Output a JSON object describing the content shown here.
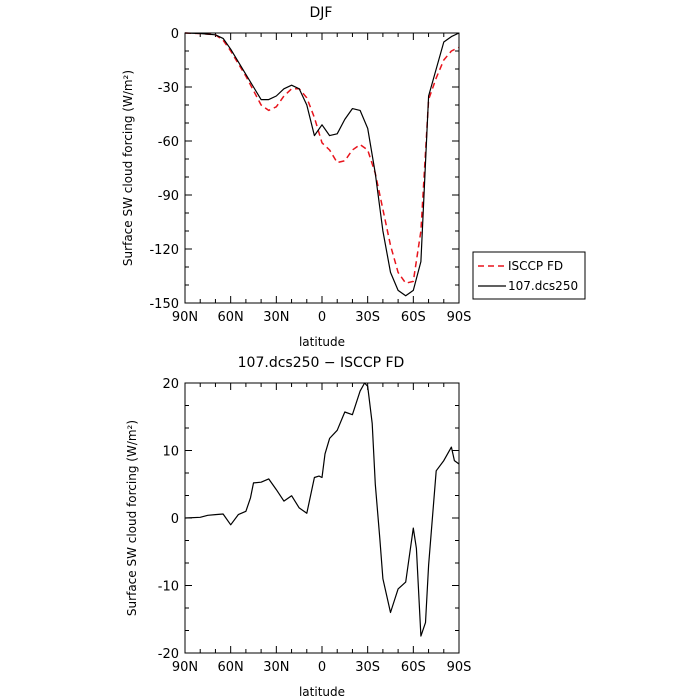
{
  "chart_data": [
    {
      "type": "line",
      "title": "DJF",
      "xlabel": "latitude",
      "ylabel": "Surface SW cloud forcing (W/m²)",
      "xlim": [
        -90,
        90
      ],
      "ylim": [
        -150,
        0
      ],
      "x_ticks": [
        -90,
        -60,
        -30,
        0,
        30,
        60,
        90
      ],
      "x_tick_labels": [
        "90N",
        "60N",
        "30N",
        "0",
        "30S",
        "60S",
        "90S"
      ],
      "y_ticks": [
        0,
        -30,
        -60,
        -90,
        -120,
        -150
      ],
      "y_tick_labels": [
        "0",
        "-30",
        "-60",
        "-90",
        "-120",
        "-150"
      ],
      "legend_position": "right",
      "series": [
        {
          "name": "ISCCP FD",
          "style": "dashed",
          "color": "#e8141c",
          "x": [
            -90,
            -80,
            -70,
            -65,
            -60,
            -55,
            -50,
            -45,
            -40,
            -35,
            -30,
            -25,
            -20,
            -15,
            -10,
            -5,
            0,
            5,
            10,
            15,
            20,
            25,
            30,
            35,
            40,
            45,
            50,
            55,
            60,
            65,
            70,
            75,
            80,
            85,
            90
          ],
          "y": [
            0,
            -0.3,
            -1,
            -4,
            -10,
            -17,
            -24,
            -32,
            -40,
            -43,
            -41,
            -35,
            -31,
            -31,
            -36,
            -47,
            -61,
            -65,
            -72,
            -71,
            -65,
            -62,
            -65,
            -78,
            -98,
            -118,
            -133,
            -139,
            -138,
            -110,
            -37,
            -25,
            -15,
            -10,
            -8
          ]
        },
        {
          "name": "107.dcs250",
          "style": "solid",
          "color": "#000000",
          "x": [
            -90,
            -80,
            -70,
            -65,
            -60,
            -55,
            -50,
            -45,
            -40,
            -35,
            -30,
            -25,
            -20,
            -15,
            -10,
            -5,
            0,
            5,
            10,
            15,
            20,
            25,
            30,
            35,
            40,
            45,
            50,
            55,
            60,
            65,
            70,
            75,
            80,
            85,
            90
          ],
          "y": [
            0,
            -0.3,
            -1,
            -3,
            -9,
            -16,
            -23,
            -30,
            -37,
            -37,
            -35,
            -31,
            -29,
            -31,
            -40,
            -57,
            -51,
            -57,
            -56,
            -48,
            -42,
            -43,
            -53,
            -78,
            -110,
            -133,
            -143,
            -146,
            -143,
            -127,
            -35,
            -20,
            -5,
            -2,
            0
          ]
        }
      ]
    },
    {
      "type": "line",
      "title": "107.dcs250 − ISCCP FD",
      "xlabel": "latitude",
      "ylabel": "Surface SW cloud forcing (W/m²)",
      "xlim": [
        -90,
        90
      ],
      "ylim": [
        -20,
        20
      ],
      "x_ticks": [
        -90,
        -60,
        -30,
        0,
        30,
        60,
        90
      ],
      "x_tick_labels": [
        "90N",
        "60N",
        "30N",
        "0",
        "30S",
        "60S",
        "90S"
      ],
      "y_ticks": [
        20,
        10,
        0,
        -10,
        -20
      ],
      "y_tick_labels": [
        "20",
        "10",
        "0",
        "-10",
        "-20"
      ],
      "series": [
        {
          "name": "",
          "style": "solid",
          "color": "#000000",
          "x": [
            -90,
            -80,
            -75,
            -70,
            -65,
            -60,
            -55,
            -50,
            -47,
            -45,
            -40,
            -35,
            -30,
            -25,
            -20,
            -15,
            -10,
            -5,
            -2,
            0,
            2,
            5,
            10,
            15,
            20,
            25,
            28,
            30,
            33,
            35,
            38,
            40,
            45,
            50,
            55,
            60,
            62,
            65,
            68,
            70,
            75,
            80,
            85,
            87,
            90
          ],
          "y": [
            0,
            0.1,
            0.4,
            0.5,
            0.6,
            -1,
            0.5,
            1,
            3,
            5.2,
            5.3,
            5.8,
            4.2,
            2.5,
            3.3,
            1.5,
            0.7,
            6,
            6.2,
            6,
            9.5,
            11.8,
            13,
            15.7,
            15.3,
            18.8,
            20,
            19.5,
            14,
            5,
            -3,
            -9,
            -14,
            -10.5,
            -9.5,
            -1.5,
            -4.5,
            -17.5,
            -15.5,
            -7,
            7,
            8.5,
            10.5,
            8.5,
            8
          ]
        }
      ]
    }
  ]
}
